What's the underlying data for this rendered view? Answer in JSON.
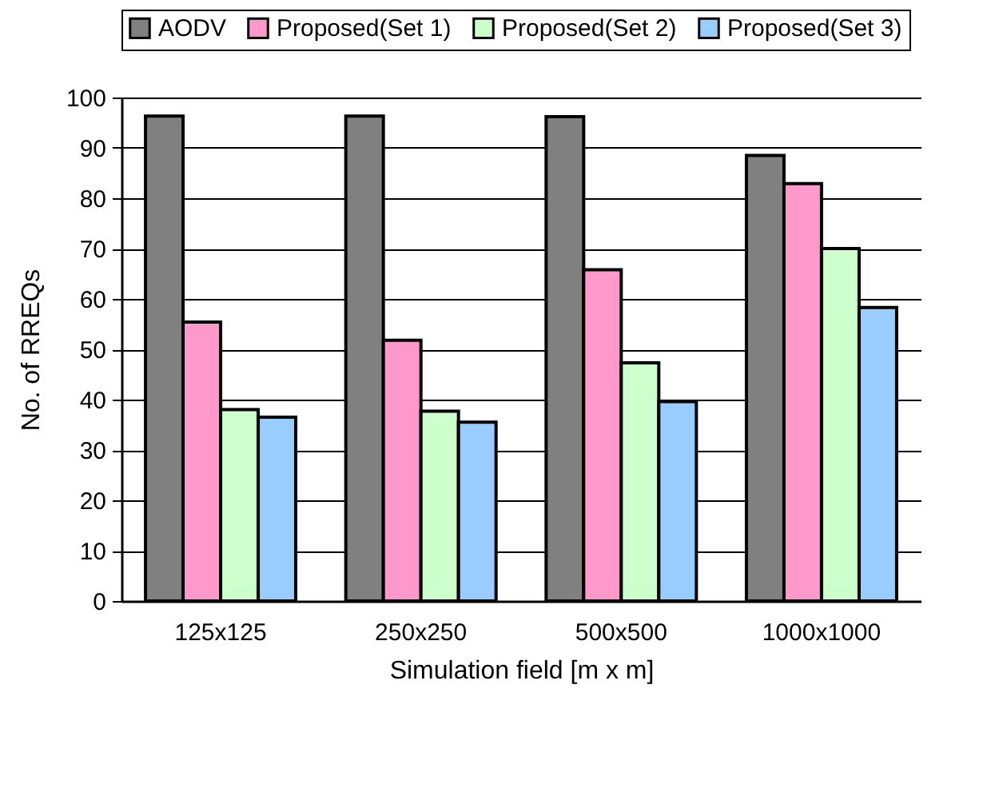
{
  "chart_data": {
    "type": "bar",
    "xlabel": "Simulation field [m x m]",
    "ylabel": "No. of RREQs",
    "categories": [
      "125x125",
      "250x250",
      "500x500",
      "1000x1000"
    ],
    "series": [
      {
        "name": "AODV",
        "color": "#808080",
        "values": [
          96.3,
          96.3,
          96.2,
          88.5
        ]
      },
      {
        "name": "Proposed(Set 1)",
        "color": "#ff99cc",
        "values": [
          55.4,
          51.8,
          65.8,
          82.9
        ]
      },
      {
        "name": "Proposed(Set 2)",
        "color": "#ccffcc",
        "values": [
          38.0,
          37.7,
          47.3,
          70.0
        ]
      },
      {
        "name": "Proposed(Set 3)",
        "color": "#99ccff",
        "values": [
          36.5,
          35.5,
          39.6,
          58.3
        ]
      }
    ],
    "ylim": [
      0,
      100
    ],
    "yticks": [
      0,
      10,
      20,
      30,
      40,
      50,
      60,
      70,
      80,
      90,
      100
    ],
    "grid": "y",
    "legend": "top"
  }
}
